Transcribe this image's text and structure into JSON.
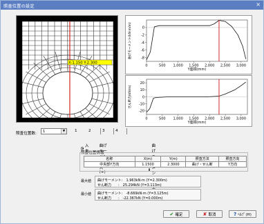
{
  "window": {
    "title": "照査位置の設定",
    "close_glyph": "×"
  },
  "mesh_view": {
    "marker_label": "X:1.150 Y:2.300"
  },
  "charts": {
    "moment": {
      "ylabel": "曲げモーメント(kN·m/m)",
      "xlabel": "Y座標(mm)",
      "xticks": [
        "0",
        "500",
        "1,000",
        "1,500",
        "2,000",
        "2,500",
        "3,000"
      ],
      "yticks": [
        "0",
        "-2",
        "-4",
        "-6",
        "-8"
      ]
    },
    "shear": {
      "ylabel": "せん断力(kN/m)",
      "xlabel": "Y座標(mm)",
      "xticks": [
        "0",
        "500",
        "1,000",
        "1,500",
        "2,000",
        "2,500",
        "3,000"
      ],
      "yticks": [
        "20",
        "10",
        "0",
        "-10",
        "-20"
      ]
    }
  },
  "chart_data": [
    {
      "type": "line",
      "xlabel": "Y座標(mm)",
      "ylabel": "曲げモーメント(kN·m/m)",
      "xlim": [
        0,
        3200
      ],
      "ylim": [
        -9,
        2
      ],
      "series": [
        {
          "x": [
            0,
            120,
            250,
            400,
            800,
            1200,
            1600,
            2000,
            2150,
            2300,
            2500,
            2700,
            2900,
            3050,
            3150
          ],
          "values": [
            -8.6,
            -6.5,
            0.2,
            0.5,
            0.5,
            0.5,
            0.5,
            0.5,
            1.0,
            1.9,
            1.6,
            0.3,
            -2.0,
            -5.0,
            -8.4
          ]
        }
      ]
    },
    {
      "type": "line",
      "xlabel": "Y座標(mm)",
      "ylabel": "せん断力(kN/m)",
      "xlim": [
        0,
        3200
      ],
      "ylim": [
        -25,
        25
      ],
      "series": [
        {
          "x": [
            0,
            100,
            220,
            300,
            700,
            1100,
            1500,
            1900,
            2100,
            2300,
            2500,
            2800,
            3000,
            3150
          ],
          "values": [
            -22,
            -17,
            -2,
            -1,
            0,
            0,
            0,
            0,
            0.5,
            1,
            4,
            10,
            16,
            21
          ]
        }
      ]
    }
  ],
  "location": {
    "label": "照査位置数:",
    "value": "1"
  },
  "tabs": [
    "1",
    "2",
    "3",
    "4"
  ],
  "radios": [
    {
      "label": "入力",
      "checked": true
    },
    {
      "label": "曲げモーメント最大(+)",
      "checked": false
    },
    {
      "label": "曲げモーメント最大(-)",
      "checked": false
    }
  ],
  "info": {
    "group_title": "照査位置情報",
    "headers": [
      "名称",
      "X(m)",
      "Y(m)",
      "照査方法",
      "照査方向"
    ],
    "row": [
      "中央部Y方向",
      "1.1500",
      "2.3000",
      "曲げ・せん断",
      "Y方向"
    ]
  },
  "results": {
    "max_label": "最大値",
    "min_label": "最小値",
    "max_lines": [
      "曲げモーメント:　1.963kN·m (Y=2.300m)",
      "せん断力　　:　25.294kN (Y=3.113m)"
    ],
    "min_lines": [
      "曲げモーメント:　-8.669kN·m (Y=3.125m)",
      "せん断力　　:　-22.367kN (Y=0.000m)"
    ]
  },
  "buttons": {
    "ok": "確定",
    "cancel": "取消",
    "help": "ﾍﾙﾌﾟ(H)"
  },
  "colors": {
    "title_bar": "#5b7ec2",
    "marker_line": "#d11010",
    "marker_box": "#ffff00",
    "ok_icon": "#1a8a1a",
    "cancel_icon": "#c81414",
    "help_icon": "#1a4fb0"
  }
}
